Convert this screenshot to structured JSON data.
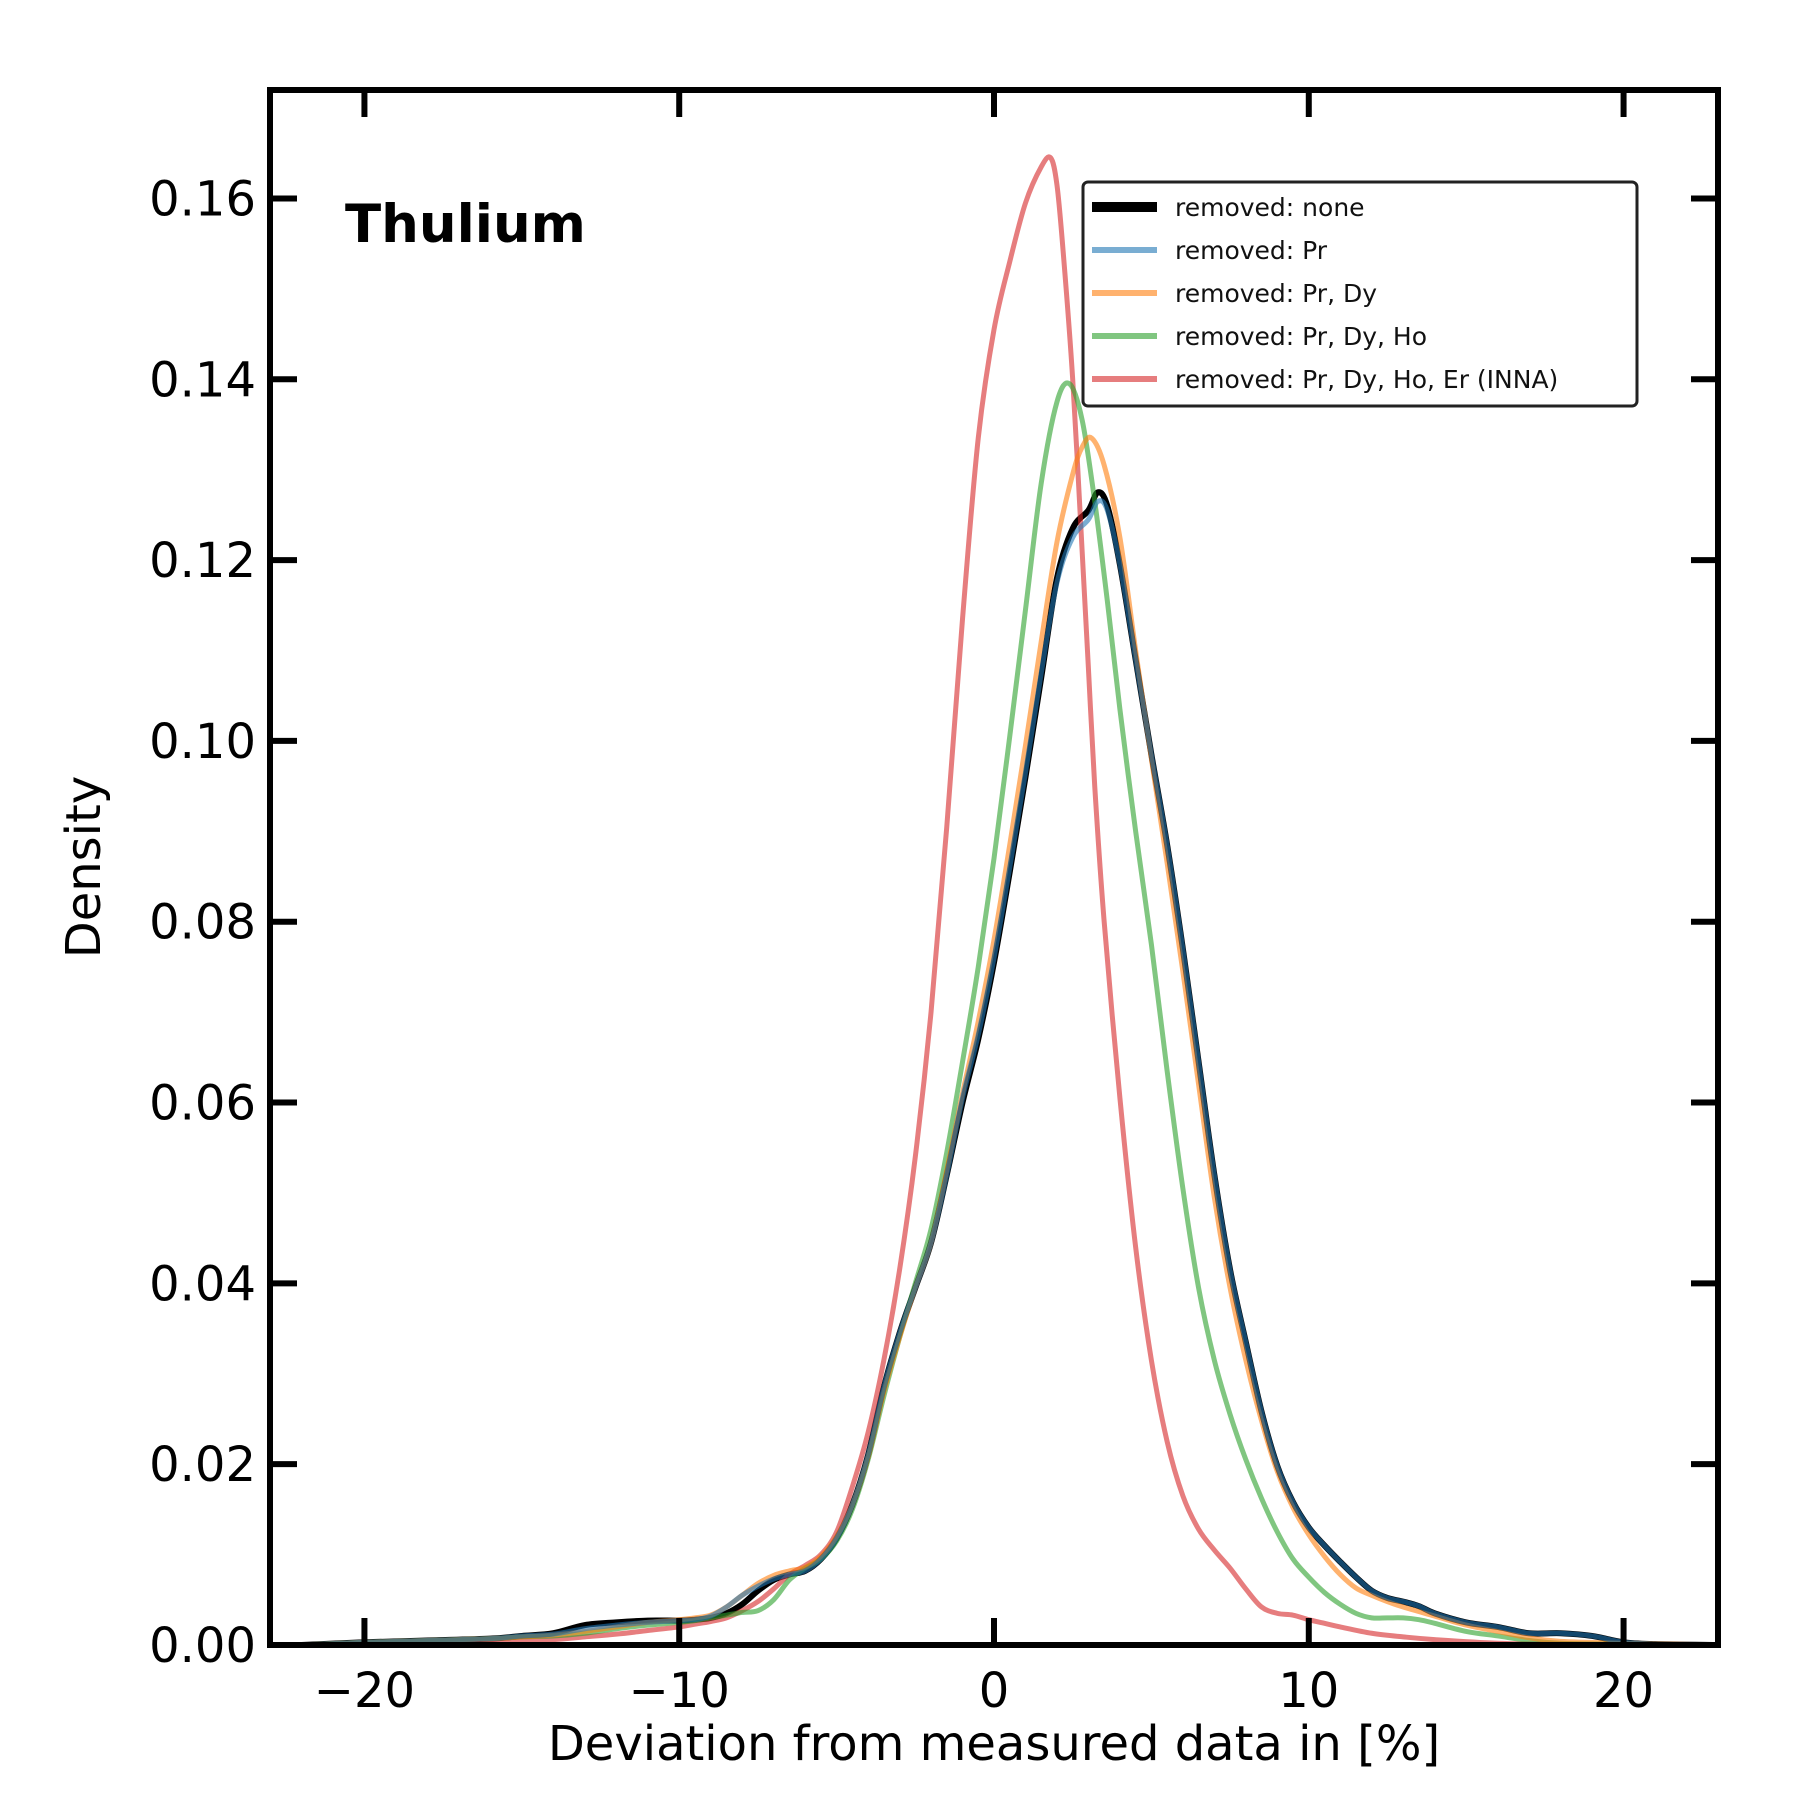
{
  "chart_data": {
    "type": "line",
    "title": "Thulium",
    "xlabel": "Deviation from measured data in [%]",
    "ylabel": "Density",
    "xlim": [
      -23,
      23
    ],
    "ylim": [
      0,
      0.172
    ],
    "xticks": [
      -20,
      -10,
      0,
      10,
      20
    ],
    "xtick_labels": [
      "−20",
      "−10",
      "0",
      "10",
      "20"
    ],
    "yticks": [
      0.0,
      0.02,
      0.04,
      0.06,
      0.08,
      0.1,
      0.12,
      0.14,
      0.16
    ],
    "ytick_labels": [
      "0.00",
      "0.02",
      "0.04",
      "0.06",
      "0.08",
      "0.10",
      "0.12",
      "0.14",
      "0.16"
    ],
    "grid": false,
    "legend_position": "top-right",
    "series": [
      {
        "name": "removed: none",
        "color": "#000000",
        "opacity": 1.0,
        "x": [
          -22,
          -20,
          -18,
          -16,
          -15,
          -14,
          -13,
          -12,
          -11,
          -10,
          -9.5,
          -9,
          -8.5,
          -8,
          -7.5,
          -7,
          -6.5,
          -6,
          -5.5,
          -5,
          -4.5,
          -4,
          -3.5,
          -3,
          -2.5,
          -2,
          -1.5,
          -1,
          -0.5,
          0,
          0.5,
          1,
          1.5,
          2,
          2.5,
          3,
          3.3,
          3.6,
          4,
          4.5,
          5,
          5.5,
          6,
          6.5,
          7,
          7.5,
          8,
          8.5,
          9,
          9.5,
          10,
          10.5,
          11,
          11.5,
          12,
          12.5,
          13,
          13.5,
          14,
          15,
          16,
          17,
          18,
          19,
          20,
          21,
          23
        ],
        "y": [
          0.0,
          0.0003,
          0.0005,
          0.0007,
          0.001,
          0.0013,
          0.0022,
          0.0025,
          0.0027,
          0.0027,
          0.0028,
          0.003,
          0.0035,
          0.0045,
          0.006,
          0.0072,
          0.0078,
          0.0082,
          0.0095,
          0.0118,
          0.0155,
          0.021,
          0.0285,
          0.0345,
          0.0395,
          0.0445,
          0.052,
          0.06,
          0.067,
          0.0755,
          0.0855,
          0.096,
          0.107,
          0.118,
          0.1235,
          0.1255,
          0.1275,
          0.126,
          0.1195,
          0.109,
          0.0985,
          0.0885,
          0.077,
          0.0645,
          0.052,
          0.0415,
          0.0335,
          0.0258,
          0.0198,
          0.0158,
          0.013,
          0.011,
          0.0092,
          0.0075,
          0.006,
          0.0052,
          0.0048,
          0.0043,
          0.0035,
          0.0025,
          0.002,
          0.0013,
          0.0013,
          0.001,
          0.0003,
          0.0001,
          0.0
        ]
      },
      {
        "name": "removed: Pr",
        "color": "#1f77b4",
        "opacity": 0.6,
        "x": [
          -22,
          -20,
          -18,
          -16,
          -15,
          -14,
          -13,
          -12,
          -11,
          -10,
          -9.5,
          -9,
          -8.5,
          -8,
          -7.5,
          -7,
          -6.5,
          -6,
          -5.5,
          -5,
          -4.5,
          -4,
          -3.5,
          -3,
          -2.5,
          -2,
          -1.5,
          -1,
          -0.5,
          0,
          0.5,
          1,
          1.5,
          2,
          2.5,
          3,
          3.3,
          3.6,
          4,
          4.5,
          5,
          5.5,
          6,
          6.5,
          7,
          7.5,
          8,
          8.5,
          9,
          9.5,
          10,
          10.5,
          11,
          11.5,
          12,
          12.5,
          13,
          13.5,
          14,
          15,
          16,
          17,
          18,
          19,
          20,
          21,
          23
        ],
        "y": [
          0.0,
          0.0003,
          0.0005,
          0.0007,
          0.001,
          0.0012,
          0.0018,
          0.0022,
          0.0025,
          0.0027,
          0.0028,
          0.0032,
          0.0042,
          0.0055,
          0.0065,
          0.0073,
          0.0078,
          0.0082,
          0.0095,
          0.0118,
          0.0155,
          0.021,
          0.0285,
          0.0345,
          0.0395,
          0.0445,
          0.052,
          0.0605,
          0.0675,
          0.076,
          0.086,
          0.0965,
          0.1075,
          0.1175,
          0.1225,
          0.1245,
          0.1265,
          0.1255,
          0.1195,
          0.109,
          0.0985,
          0.0885,
          0.077,
          0.0645,
          0.052,
          0.0415,
          0.0335,
          0.0258,
          0.0198,
          0.0158,
          0.013,
          0.011,
          0.0092,
          0.0075,
          0.006,
          0.0052,
          0.0048,
          0.0043,
          0.0035,
          0.0025,
          0.002,
          0.0013,
          0.0013,
          0.001,
          0.0003,
          0.0001,
          0.0
        ]
      },
      {
        "name": "removed: Pr, Dy",
        "color": "#ff7f0e",
        "opacity": 0.6,
        "x": [
          -22,
          -20,
          -18,
          -16,
          -15,
          -14,
          -13,
          -12,
          -11,
          -10,
          -9.5,
          -9,
          -8.5,
          -8,
          -7.5,
          -7,
          -6.5,
          -6,
          -5.5,
          -5,
          -4.5,
          -4,
          -3.5,
          -3,
          -2.5,
          -2,
          -1.5,
          -1,
          -0.5,
          0,
          0.5,
          1,
          1.5,
          2,
          2.5,
          2.8,
          3.1,
          3.5,
          4,
          4.5,
          5,
          5.5,
          6,
          6.5,
          7,
          7.5,
          8,
          8.5,
          9,
          9.5,
          10,
          10.5,
          11,
          11.5,
          12,
          12.5,
          13,
          14,
          15,
          16,
          17,
          18,
          20,
          23
        ],
        "y": [
          0.0,
          0.0003,
          0.0005,
          0.0007,
          0.0009,
          0.0011,
          0.0015,
          0.002,
          0.0025,
          0.0028,
          0.003,
          0.0033,
          0.0042,
          0.0055,
          0.0068,
          0.0077,
          0.0082,
          0.0086,
          0.0098,
          0.012,
          0.0155,
          0.0208,
          0.028,
          0.034,
          0.0395,
          0.0445,
          0.0525,
          0.061,
          0.069,
          0.078,
          0.0885,
          0.0995,
          0.111,
          0.122,
          0.1295,
          0.1325,
          0.1335,
          0.1305,
          0.1225,
          0.11,
          0.098,
          0.0865,
          0.0745,
          0.062,
          0.0495,
          0.0395,
          0.0315,
          0.0248,
          0.0192,
          0.0152,
          0.0122,
          0.0098,
          0.0078,
          0.0063,
          0.0055,
          0.0048,
          0.0042,
          0.0032,
          0.0022,
          0.0015,
          0.0008,
          0.0004,
          0.0002,
          0.0
        ]
      },
      {
        "name": "removed: Pr, Dy, Ho",
        "color": "#2ca02c",
        "opacity": 0.6,
        "x": [
          -22,
          -20,
          -18,
          -16,
          -15,
          -14,
          -13,
          -12,
          -11,
          -10,
          -9.5,
          -9,
          -8.5,
          -8,
          -7.5,
          -7,
          -6.5,
          -6,
          -5.5,
          -5,
          -4.5,
          -4,
          -3.5,
          -3,
          -2.5,
          -2,
          -1.5,
          -1,
          -0.5,
          0,
          0.5,
          1,
          1.5,
          2,
          2.4,
          2.8,
          3.2,
          3.6,
          4,
          4.5,
          5,
          5.5,
          6,
          6.5,
          7,
          7.5,
          8,
          8.5,
          9,
          9.5,
          10,
          10.5,
          11,
          11.5,
          12,
          12.5,
          13,
          13.5,
          14,
          15,
          16,
          17,
          18,
          20,
          23
        ],
        "y": [
          0.0,
          0.0003,
          0.0005,
          0.0007,
          0.0009,
          0.001,
          0.0013,
          0.0018,
          0.0022,
          0.0025,
          0.0027,
          0.003,
          0.0033,
          0.0036,
          0.0038,
          0.005,
          0.0072,
          0.0085,
          0.0095,
          0.0115,
          0.015,
          0.0205,
          0.0275,
          0.034,
          0.04,
          0.046,
          0.0545,
          0.0645,
          0.075,
          0.087,
          0.1005,
          0.1145,
          0.1285,
          0.1375,
          0.1395,
          0.1355,
          0.1265,
          0.1155,
          0.1035,
          0.09,
          0.0775,
          0.0635,
          0.0505,
          0.0395,
          0.0315,
          0.0255,
          0.0205,
          0.0162,
          0.0125,
          0.0095,
          0.0075,
          0.0058,
          0.0045,
          0.0035,
          0.003,
          0.003,
          0.003,
          0.0028,
          0.0024,
          0.0015,
          0.001,
          0.0005,
          0.0002,
          0.0001,
          0.0
        ]
      },
      {
        "name": "removed: Pr, Dy, Ho, Er (INNA)",
        "color": "#d62728",
        "opacity": 0.6,
        "x": [
          -22,
          -18,
          -16,
          -14,
          -13,
          -12,
          -11,
          -10,
          -9.5,
          -9,
          -8.5,
          -8,
          -7.5,
          -7,
          -6.5,
          -6,
          -5.5,
          -5,
          -4.5,
          -4,
          -3.5,
          -3,
          -2.5,
          -2,
          -1.5,
          -1,
          -0.5,
          0,
          0.5,
          1,
          1.5,
          1.8,
          2.0,
          2.2,
          2.5,
          2.8,
          3.0,
          3.2,
          3.5,
          4,
          4.5,
          5,
          5.5,
          6,
          6.5,
          7,
          7.5,
          8,
          8.5,
          9,
          9.5,
          10,
          10.5,
          11,
          12,
          13,
          14,
          16,
          18,
          20,
          23
        ],
        "y": [
          0.0,
          0.0,
          0.0003,
          0.0006,
          0.0009,
          0.0012,
          0.0016,
          0.002,
          0.0023,
          0.0026,
          0.003,
          0.0038,
          0.0048,
          0.0062,
          0.0078,
          0.0088,
          0.01,
          0.0125,
          0.0175,
          0.0235,
          0.0315,
          0.0415,
          0.054,
          0.07,
          0.0905,
          0.1135,
          0.1335,
          0.1455,
          0.153,
          0.1595,
          0.1635,
          0.1645,
          0.1615,
          0.154,
          0.14,
          0.121,
          0.108,
          0.095,
          0.08,
          0.0605,
          0.044,
          0.0315,
          0.0225,
          0.0165,
          0.0128,
          0.0105,
          0.0085,
          0.0062,
          0.0042,
          0.0035,
          0.0033,
          0.0028,
          0.0024,
          0.002,
          0.0013,
          0.0009,
          0.0006,
          0.0002,
          0.0001,
          0.0,
          0.0
        ]
      }
    ]
  }
}
